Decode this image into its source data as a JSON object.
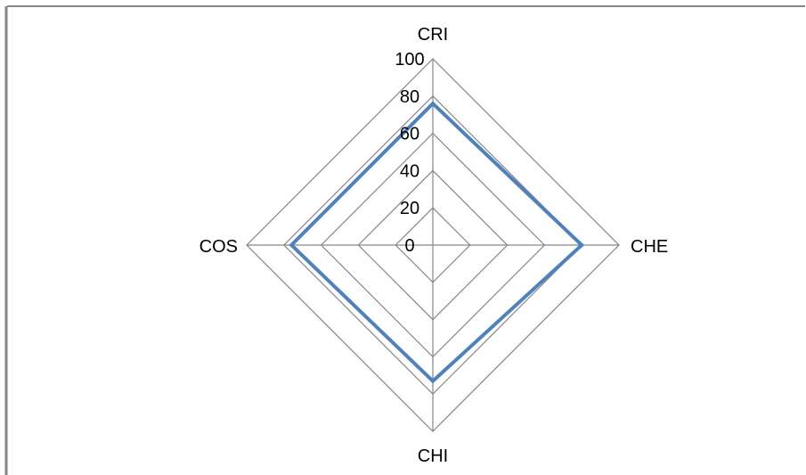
{
  "chart_data": {
    "type": "radar",
    "title": "",
    "categories": [
      "CRI",
      "CHE",
      "CHI",
      "COS"
    ],
    "series": [
      {
        "values": [
          76,
          80,
          73,
          76
        ]
      }
    ],
    "rlim": [
      0,
      100
    ],
    "rticks": [
      "0",
      "20",
      "40",
      "60",
      "80",
      "100"
    ],
    "grid": true,
    "legend": "none",
    "colors": {
      "series": "#4f81bd",
      "grid": "#868686",
      "border": "#868686"
    }
  }
}
